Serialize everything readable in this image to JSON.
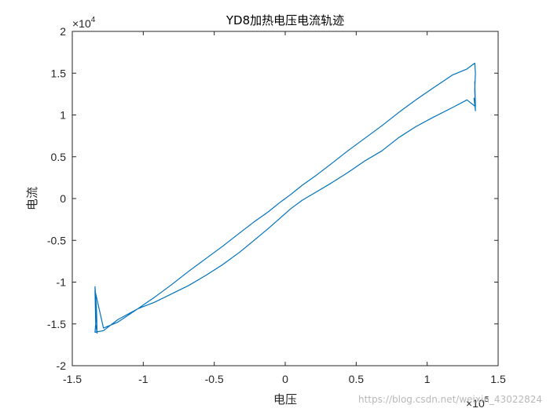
{
  "watermark": "https://blog.csdn.net/weixin_43022824",
  "chart_data": {
    "type": "line",
    "title": "YD8加热电压电流轨迹",
    "xlabel": "电压",
    "ylabel": "电流",
    "xlim": [
      -150000,
      150000
    ],
    "ylim": [
      -20000,
      20000
    ],
    "x_exponent_label": "×10",
    "x_exponent_power": "5",
    "y_exponent_label": "×10",
    "y_exponent_power": "4",
    "x_ticks": [
      {
        "value": -150000,
        "label": "-1.5"
      },
      {
        "value": -100000,
        "label": "-1"
      },
      {
        "value": -50000,
        "label": "-0.5"
      },
      {
        "value": 0,
        "label": "0"
      },
      {
        "value": 50000,
        "label": "0.5"
      },
      {
        "value": 100000,
        "label": "1"
      },
      {
        "value": 150000,
        "label": "1.5"
      }
    ],
    "y_ticks": [
      {
        "value": -20000,
        "label": "-2"
      },
      {
        "value": -15000,
        "label": "-1.5"
      },
      {
        "value": -10000,
        "label": "-1"
      },
      {
        "value": -5000,
        "label": "-0.5"
      },
      {
        "value": 0,
        "label": "0"
      },
      {
        "value": 5000,
        "label": "0.5"
      },
      {
        "value": 10000,
        "label": "1"
      },
      {
        "value": 15000,
        "label": "1.5"
      },
      {
        "value": 20000,
        "label": "2"
      }
    ],
    "grid": false,
    "legend": "none",
    "series": [
      {
        "color": "#0072BD",
        "x": [
          -134000,
          -133000,
          -132500,
          -133500,
          -134000,
          -128000,
          -118000,
          -104000,
          -92000,
          -80000,
          -68000,
          -56000,
          -44000,
          -32000,
          -22000,
          -12000,
          -4000,
          4000,
          12000,
          22000,
          32000,
          44000,
          56000,
          68000,
          80000,
          92000,
          104000,
          118000,
          128000,
          133500,
          134000,
          133500,
          134000,
          133000,
          134000,
          133500,
          134000,
          128000,
          118000,
          104000,
          92000,
          80000,
          68000,
          56000,
          44000,
          32000,
          22000,
          12000,
          4000,
          -4000,
          -12000,
          -22000,
          -32000,
          -44000,
          -56000,
          -68000,
          -80000,
          -92000,
          -104000,
          -118000,
          -128000,
          -134000,
          -133000,
          -134000,
          -133500
        ],
        "y": [
          -10500,
          -13000,
          -16100,
          -15000,
          -11000,
          -15500,
          -14800,
          -13200,
          -11800,
          -10300,
          -8700,
          -7200,
          -5700,
          -4100,
          -2800,
          -1600,
          -500,
          500,
          1600,
          2800,
          4100,
          5700,
          7200,
          8700,
          10300,
          11800,
          13200,
          14800,
          15500,
          16200,
          15000,
          13000,
          10500,
          12000,
          11000,
          14000,
          11000,
          11800,
          10900,
          9700,
          8600,
          7300,
          5700,
          4500,
          3100,
          1800,
          800,
          -200,
          -1200,
          -2400,
          -3600,
          -5000,
          -6400,
          -7900,
          -9200,
          -10400,
          -11400,
          -12400,
          -13200,
          -14500,
          -15800,
          -16000,
          -14000,
          -10700,
          -12500
        ]
      }
    ]
  }
}
